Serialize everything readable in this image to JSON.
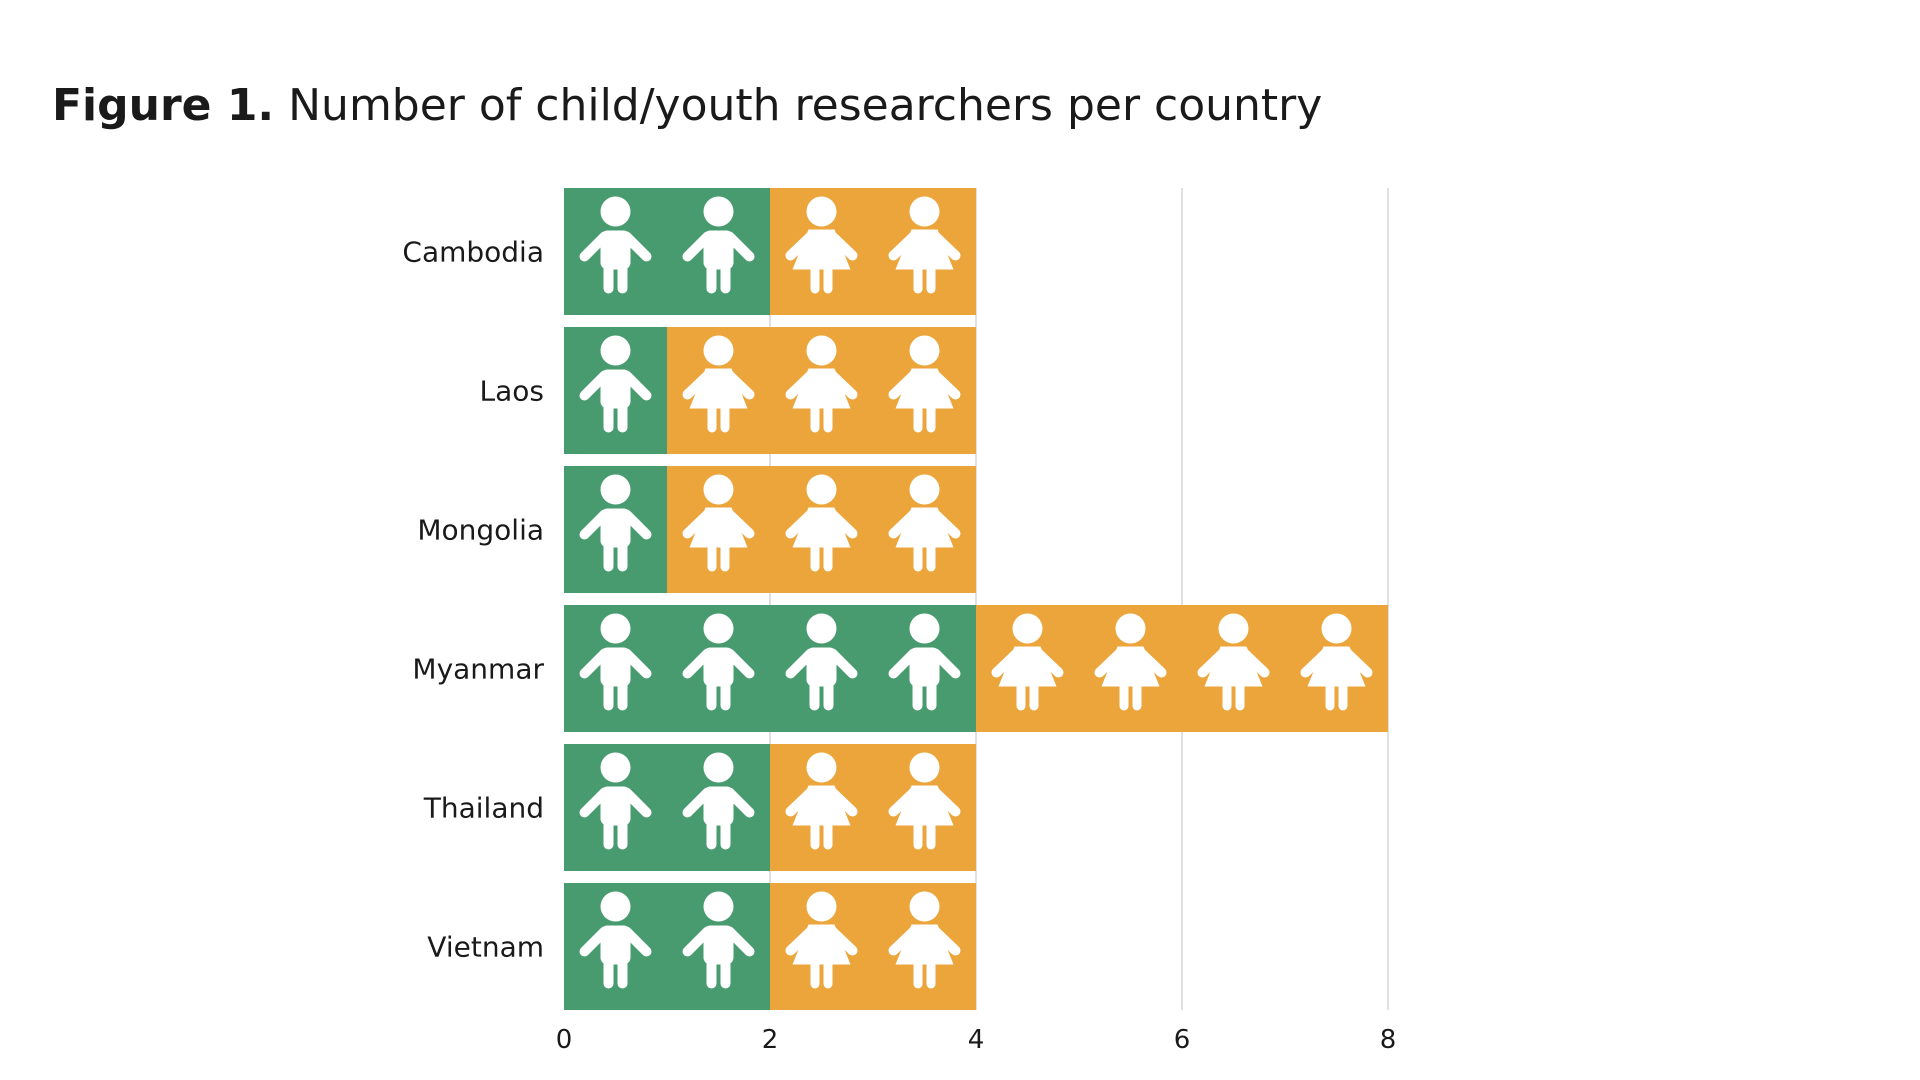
{
  "title": {
    "prefix": "Figure 1.",
    "text": " Number of child/youth researchers per country"
  },
  "chart_data": {
    "type": "bar",
    "orientation": "horizontal",
    "stacked": true,
    "title": "Figure 1. Number of child/youth researchers per country",
    "categories": [
      "Cambodia",
      "Laos",
      "Mongolia",
      "Myanmar",
      "Thailand",
      "Vietnam"
    ],
    "series": [
      {
        "name": "Boys",
        "color": "#489b6f",
        "icon": "boy-icon",
        "values": [
          2,
          1,
          1,
          4,
          2,
          2
        ]
      },
      {
        "name": "Girls",
        "color": "#eba53b",
        "icon": "girl-icon",
        "values": [
          2,
          3,
          3,
          4,
          2,
          2
        ]
      }
    ],
    "xlim": [
      0,
      8
    ],
    "xticks": [
      0,
      2,
      4,
      6,
      8
    ],
    "tick_labels": [
      "0",
      "2",
      "4",
      "6",
      "8"
    ],
    "grid": true,
    "xlabel": "",
    "ylabel": ""
  }
}
